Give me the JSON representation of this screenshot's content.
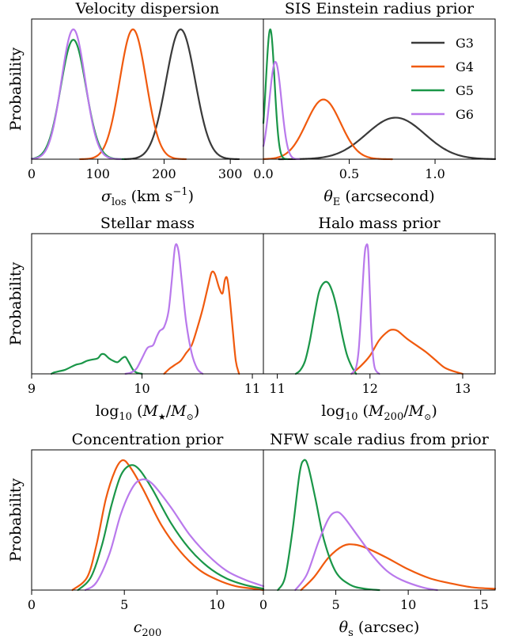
{
  "colors": {
    "G3": "#3a3a3a",
    "G4": "#f05a0e",
    "G5": "#1a9648",
    "G6": "#b979ec"
  },
  "ylabel": "Probability",
  "legend": {
    "placement": "top-right",
    "entries": [
      "G3",
      "G4",
      "G5",
      "G6"
    ]
  },
  "chart_data": [
    {
      "type": "line",
      "title": "Velocity dispersion",
      "xlabel": "σlos (km s−1)",
      "ylabel": "Probability",
      "xlim": [
        0,
        350
      ],
      "ylim": [
        0,
        1.08
      ],
      "xticks": [
        0,
        100,
        200,
        300
      ],
      "series": [
        {
          "name": "G3",
          "kind": "gauss",
          "mu": 225,
          "sigma": 22,
          "peak": 1.0
        },
        {
          "name": "G4",
          "kind": "gauss",
          "mu": 153,
          "sigma": 20,
          "peak": 1.0
        },
        {
          "name": "G5",
          "kind": "gauss",
          "mu": 63,
          "sigma": 19,
          "peak": 0.92
        },
        {
          "name": "G6",
          "kind": "gauss",
          "mu": 63,
          "sigma": 18,
          "peak": 1.0
        }
      ]
    },
    {
      "type": "line",
      "title": "SIS Einstein radius prior",
      "xlabel": "θE (arcsecond)",
      "ylabel": "",
      "xlim": [
        0,
        1.35
      ],
      "ylim": [
        0,
        1.08
      ],
      "xticks": [
        0.0,
        0.5,
        1.0
      ],
      "xticklabels": [
        "0.0",
        "0.5",
        "1.0"
      ],
      "series": [
        {
          "name": "G3",
          "kind": "gauss",
          "mu": 0.77,
          "sigma": 0.17,
          "peak": 0.32
        },
        {
          "name": "G4",
          "kind": "gauss",
          "mu": 0.35,
          "sigma": 0.1,
          "peak": 0.46
        },
        {
          "name": "G5",
          "kind": "gauss",
          "mu": 0.04,
          "sigma": 0.025,
          "peak": 1.0
        },
        {
          "name": "G6",
          "kind": "gauss",
          "mu": 0.07,
          "sigma": 0.035,
          "peak": 0.75
        }
      ]
    },
    {
      "type": "line",
      "title": "Stellar mass",
      "xlabel": "log10 (M★/M⊙)",
      "ylabel": "Probability",
      "xlim": [
        9,
        11.1
      ],
      "ylim": [
        0,
        1.08
      ],
      "xticks": [
        9,
        10,
        11
      ],
      "series": [
        {
          "name": "G4",
          "kind": "points",
          "points": [
            [
              10.2,
              0
            ],
            [
              10.25,
              0.04
            ],
            [
              10.3,
              0.07
            ],
            [
              10.35,
              0.1
            ],
            [
              10.4,
              0.16
            ],
            [
              10.45,
              0.22
            ],
            [
              10.5,
              0.35
            ],
            [
              10.55,
              0.5
            ],
            [
              10.6,
              0.68
            ],
            [
              10.63,
              0.78
            ],
            [
              10.66,
              0.77
            ],
            [
              10.7,
              0.66
            ],
            [
              10.73,
              0.62
            ],
            [
              10.75,
              0.72
            ],
            [
              10.77,
              0.74
            ],
            [
              10.79,
              0.63
            ],
            [
              10.82,
              0.36
            ],
            [
              10.85,
              0.1
            ],
            [
              10.88,
              0
            ]
          ]
        },
        {
          "name": "G5",
          "kind": "points",
          "points": [
            [
              9.18,
              0
            ],
            [
              9.2,
              0.01
            ],
            [
              9.25,
              0.02
            ],
            [
              9.3,
              0.03
            ],
            [
              9.35,
              0.05
            ],
            [
              9.4,
              0.07
            ],
            [
              9.45,
              0.08
            ],
            [
              9.5,
              0.1
            ],
            [
              9.55,
              0.11
            ],
            [
              9.6,
              0.12
            ],
            [
              9.63,
              0.15
            ],
            [
              9.66,
              0.15
            ],
            [
              9.7,
              0.12
            ],
            [
              9.74,
              0.1
            ],
            [
              9.78,
              0.09
            ],
            [
              9.82,
              0.12
            ],
            [
              9.85,
              0.13
            ],
            [
              9.88,
              0.09
            ],
            [
              9.92,
              0.03
            ],
            [
              9.95,
              0.01
            ],
            [
              10.0,
              0
            ]
          ]
        },
        {
          "name": "G6",
          "kind": "points",
          "points": [
            [
              9.85,
              0
            ],
            [
              9.9,
              0.01
            ],
            [
              9.95,
              0.04
            ],
            [
              10.0,
              0.12
            ],
            [
              10.05,
              0.2
            ],
            [
              10.1,
              0.22
            ],
            [
              10.13,
              0.28
            ],
            [
              10.16,
              0.33
            ],
            [
              10.2,
              0.36
            ],
            [
              10.24,
              0.48
            ],
            [
              10.27,
              0.72
            ],
            [
              10.3,
              0.98
            ],
            [
              10.33,
              0.95
            ],
            [
              10.36,
              0.72
            ],
            [
              10.4,
              0.4
            ],
            [
              10.45,
              0.16
            ],
            [
              10.5,
              0.04
            ],
            [
              10.55,
              0
            ]
          ]
        }
      ]
    },
    {
      "type": "line",
      "title": "Halo mass prior",
      "xlabel": "log10 (M200/M⊙)",
      "ylabel": "",
      "xlim": [
        10.85,
        13.35
      ],
      "ylim": [
        0,
        1.08
      ],
      "xticks": [
        11,
        12,
        13
      ],
      "series": [
        {
          "name": "G4",
          "kind": "points",
          "points": [
            [
              11.8,
              0
            ],
            [
              11.9,
              0.06
            ],
            [
              12.0,
              0.14
            ],
            [
              12.1,
              0.26
            ],
            [
              12.2,
              0.33
            ],
            [
              12.25,
              0.34
            ],
            [
              12.3,
              0.33
            ],
            [
              12.4,
              0.27
            ],
            [
              12.5,
              0.22
            ],
            [
              12.6,
              0.17
            ],
            [
              12.7,
              0.11
            ],
            [
              12.8,
              0.05
            ],
            [
              12.9,
              0.02
            ],
            [
              13.0,
              0
            ]
          ]
        },
        {
          "name": "G5",
          "kind": "points",
          "points": [
            [
              11.2,
              0
            ],
            [
              11.25,
              0.03
            ],
            [
              11.3,
              0.1
            ],
            [
              11.35,
              0.25
            ],
            [
              11.4,
              0.45
            ],
            [
              11.45,
              0.63
            ],
            [
              11.5,
              0.7
            ],
            [
              11.55,
              0.7
            ],
            [
              11.6,
              0.62
            ],
            [
              11.65,
              0.48
            ],
            [
              11.7,
              0.3
            ],
            [
              11.75,
              0.15
            ],
            [
              11.8,
              0.06
            ],
            [
              11.85,
              0
            ]
          ]
        },
        {
          "name": "G6",
          "kind": "points",
          "points": [
            [
              11.8,
              0
            ],
            [
              11.85,
              0.05
            ],
            [
              11.88,
              0.2
            ],
            [
              11.91,
              0.55
            ],
            [
              11.94,
              0.9
            ],
            [
              11.96,
              0.99
            ],
            [
              11.98,
              0.95
            ],
            [
              12.0,
              0.6
            ],
            [
              12.02,
              0.25
            ],
            [
              12.05,
              0.05
            ],
            [
              12.1,
              0
            ]
          ]
        }
      ]
    },
    {
      "type": "line",
      "title": "Concentration prior",
      "xlabel": "c200",
      "ylabel": "Probability",
      "xlim": [
        0,
        12.5
      ],
      "ylim": [
        0,
        1.08
      ],
      "xticks": [
        0,
        5,
        10
      ],
      "series": [
        {
          "name": "G4",
          "kind": "points",
          "points": [
            [
              2.2,
              0
            ],
            [
              3.0,
              0.1
            ],
            [
              3.5,
              0.35
            ],
            [
              4.0,
              0.7
            ],
            [
              4.5,
              0.92
            ],
            [
              4.9,
              1.0
            ],
            [
              5.3,
              0.95
            ],
            [
              6.0,
              0.78
            ],
            [
              7.0,
              0.5
            ],
            [
              8.0,
              0.3
            ],
            [
              9.0,
              0.16
            ],
            [
              10.0,
              0.08
            ],
            [
              11.0,
              0.03
            ],
            [
              12.0,
              0.01
            ],
            [
              12.5,
              0
            ]
          ]
        },
        {
          "name": "G5",
          "kind": "points",
          "points": [
            [
              2.5,
              0
            ],
            [
              3.2,
              0.1
            ],
            [
              3.8,
              0.35
            ],
            [
              4.3,
              0.65
            ],
            [
              4.8,
              0.88
            ],
            [
              5.3,
              0.96
            ],
            [
              5.8,
              0.93
            ],
            [
              6.5,
              0.78
            ],
            [
              7.5,
              0.52
            ],
            [
              8.5,
              0.32
            ],
            [
              9.5,
              0.18
            ],
            [
              10.5,
              0.09
            ],
            [
              11.5,
              0.04
            ],
            [
              12.5,
              0.01
            ]
          ]
        },
        {
          "name": "G6",
          "kind": "points",
          "points": [
            [
              2.9,
              0
            ],
            [
              3.5,
              0.06
            ],
            [
              4.2,
              0.28
            ],
            [
              4.8,
              0.58
            ],
            [
              5.4,
              0.78
            ],
            [
              5.9,
              0.85
            ],
            [
              6.5,
              0.82
            ],
            [
              7.5,
              0.64
            ],
            [
              8.5,
              0.43
            ],
            [
              9.5,
              0.27
            ],
            [
              10.5,
              0.15
            ],
            [
              11.5,
              0.08
            ],
            [
              12.5,
              0.03
            ]
          ]
        }
      ]
    },
    {
      "type": "line",
      "title": "NFW scale radius from prior",
      "xlabel": "θs (arcsec)",
      "ylabel": "",
      "xlim": [
        0,
        16
      ],
      "ylim": [
        0,
        1.08
      ],
      "xticks": [
        0,
        5,
        10,
        15
      ],
      "series": [
        {
          "name": "G4",
          "kind": "points",
          "points": [
            [
              2.6,
              0
            ],
            [
              3.5,
              0.1
            ],
            [
              4.5,
              0.25
            ],
            [
              5.5,
              0.34
            ],
            [
              6.3,
              0.35
            ],
            [
              7.2,
              0.32
            ],
            [
              8.5,
              0.25
            ],
            [
              10.0,
              0.16
            ],
            [
              11.5,
              0.09
            ],
            [
              13.0,
              0.05
            ],
            [
              14.5,
              0.02
            ],
            [
              16.0,
              0.01
            ]
          ]
        },
        {
          "name": "G5",
          "kind": "points",
          "points": [
            [
              1.0,
              0
            ],
            [
              1.5,
              0.1
            ],
            [
              2.0,
              0.45
            ],
            [
              2.5,
              0.9
            ],
            [
              2.8,
              1.0
            ],
            [
              3.1,
              0.95
            ],
            [
              3.6,
              0.7
            ],
            [
              4.2,
              0.38
            ],
            [
              5.0,
              0.14
            ],
            [
              6.0,
              0.04
            ],
            [
              7.0,
              0.01
            ],
            [
              8.0,
              0
            ]
          ]
        },
        {
          "name": "G6",
          "kind": "points",
          "points": [
            [
              2.2,
              0
            ],
            [
              3.0,
              0.12
            ],
            [
              3.8,
              0.37
            ],
            [
              4.5,
              0.55
            ],
            [
              5.0,
              0.6
            ],
            [
              5.5,
              0.57
            ],
            [
              6.5,
              0.42
            ],
            [
              7.5,
              0.27
            ],
            [
              8.5,
              0.15
            ],
            [
              9.5,
              0.08
            ],
            [
              11.0,
              0.02
            ],
            [
              12.0,
              0
            ]
          ]
        }
      ]
    }
  ]
}
